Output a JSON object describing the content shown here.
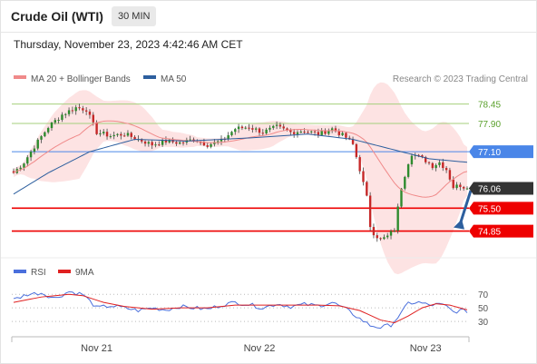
{
  "header": {
    "title": "Crude Oil (WTI)",
    "timeframe": "30 MIN"
  },
  "datetime": "Thursday, November 23, 2023 4:42:46 AM CET",
  "legend": {
    "items": [
      {
        "label": "MA 20 + Bollinger Bands",
        "color": "#f08a8a"
      },
      {
        "label": "MA 50",
        "color": "#2d5f9e"
      }
    ],
    "credit": "Research © 2023 Trading Central"
  },
  "chart_data": [
    {
      "type": "candlestick",
      "title": "",
      "price_range": [
        74.3,
        78.8
      ],
      "x_ticks": [
        {
          "label": "Nov 21",
          "index": 24
        },
        {
          "label": "Nov 22",
          "index": 71
        },
        {
          "label": "Nov 23",
          "index": 119
        }
      ],
      "levels": [
        {
          "value": 78.45,
          "label": "78.45",
          "kind": "resistance",
          "color": "#a4cf7c",
          "text_color": "#5aa02c"
        },
        {
          "value": 77.9,
          "label": "77.90",
          "kind": "resistance",
          "color": "#a4cf7c",
          "text_color": "#5aa02c"
        },
        {
          "value": 77.1,
          "label": "77.10",
          "kind": "pivot",
          "color": "#4a86e8"
        },
        {
          "value": 76.06,
          "label": "76.06",
          "kind": "last",
          "color": "#333333"
        },
        {
          "value": 75.5,
          "label": "75.50",
          "kind": "support",
          "color": "#ee0000"
        },
        {
          "value": 74.85,
          "label": "74.85",
          "kind": "support",
          "color": "#ee0000"
        }
      ],
      "colors": {
        "up": "#2e8b2e",
        "down": "#c62828",
        "band": "#fde0e0",
        "ma20": "#f08a8a",
        "ma50": "#2d5f9e",
        "arrow": "#2d5f9e"
      },
      "anchors": [
        [
          0,
          76.5
        ],
        [
          3,
          76.8
        ],
        [
          6,
          77.25
        ],
        [
          10,
          77.8
        ],
        [
          14,
          78.15
        ],
        [
          18,
          78.35
        ],
        [
          21,
          78.3
        ],
        [
          24,
          77.65
        ],
        [
          28,
          77.55
        ],
        [
          32,
          77.6
        ],
        [
          36,
          77.45
        ],
        [
          40,
          77.3
        ],
        [
          44,
          77.4
        ],
        [
          48,
          77.35
        ],
        [
          52,
          77.45
        ],
        [
          56,
          77.3
        ],
        [
          60,
          77.4
        ],
        [
          64,
          77.75
        ],
        [
          68,
          77.8
        ],
        [
          72,
          77.65
        ],
        [
          76,
          77.8
        ],
        [
          80,
          77.65
        ],
        [
          84,
          77.7
        ],
        [
          88,
          77.6
        ],
        [
          92,
          77.75
        ],
        [
          96,
          77.5
        ],
        [
          98,
          77.3
        ],
        [
          100,
          76.6
        ],
        [
          102,
          75.8
        ],
        [
          103,
          75.0
        ],
        [
          104,
          74.8
        ],
        [
          106,
          74.6
        ],
        [
          108,
          74.7
        ],
        [
          110,
          74.9
        ],
        [
          112,
          76.1
        ],
        [
          114,
          76.8
        ],
        [
          115,
          77.05
        ],
        [
          117,
          76.95
        ],
        [
          119,
          76.85
        ],
        [
          121,
          76.7
        ],
        [
          123,
          76.8
        ],
        [
          125,
          76.6
        ],
        [
          127,
          76.1
        ],
        [
          129,
          76.15
        ],
        [
          131,
          76.06
        ]
      ],
      "ma50_anchors": [
        [
          0,
          75.9
        ],
        [
          10,
          76.5
        ],
        [
          22,
          77.1
        ],
        [
          35,
          77.45
        ],
        [
          50,
          77.4
        ],
        [
          70,
          77.5
        ],
        [
          85,
          77.6
        ],
        [
          98,
          77.45
        ],
        [
          110,
          77.15
        ],
        [
          120,
          76.9
        ],
        [
          131,
          76.8
        ]
      ],
      "forecast_arrow": {
        "from_price": 76.0,
        "to_price": 74.85
      }
    },
    {
      "type": "line",
      "title": "",
      "series": [
        {
          "name": "RSI",
          "color": "#4a6fdc"
        },
        {
          "name": "9MA",
          "color": "#e02020"
        }
      ],
      "y_range": [
        10,
        85
      ],
      "levels": [
        {
          "value": 70,
          "label": "70"
        },
        {
          "value": 50,
          "label": "50"
        },
        {
          "value": 30,
          "label": "30"
        }
      ],
      "rsi_anchors": [
        [
          0,
          62
        ],
        [
          4,
          70
        ],
        [
          8,
          72
        ],
        [
          12,
          64
        ],
        [
          16,
          74
        ],
        [
          20,
          70
        ],
        [
          24,
          50
        ],
        [
          28,
          53
        ],
        [
          32,
          50
        ],
        [
          36,
          46
        ],
        [
          40,
          50
        ],
        [
          44,
          47
        ],
        [
          48,
          52
        ],
        [
          52,
          50
        ],
        [
          56,
          48
        ],
        [
          60,
          54
        ],
        [
          64,
          58
        ],
        [
          68,
          55
        ],
        [
          72,
          50
        ],
        [
          76,
          56
        ],
        [
          80,
          52
        ],
        [
          84,
          55
        ],
        [
          88,
          53
        ],
        [
          92,
          58
        ],
        [
          96,
          48
        ],
        [
          100,
          34
        ],
        [
          103,
          24
        ],
        [
          106,
          21
        ],
        [
          109,
          25
        ],
        [
          112,
          42
        ],
        [
          114,
          57
        ],
        [
          117,
          58
        ],
        [
          120,
          54
        ],
        [
          123,
          55
        ],
        [
          125,
          52
        ],
        [
          127,
          44
        ],
        [
          129,
          46
        ],
        [
          131,
          45
        ]
      ],
      "ma9_anchors": [
        [
          0,
          58
        ],
        [
          8,
          66
        ],
        [
          16,
          70
        ],
        [
          20,
          68
        ],
        [
          26,
          58
        ],
        [
          32,
          52
        ],
        [
          40,
          48
        ],
        [
          48,
          50
        ],
        [
          56,
          50
        ],
        [
          64,
          54
        ],
        [
          72,
          54
        ],
        [
          80,
          54
        ],
        [
          88,
          54
        ],
        [
          94,
          53
        ],
        [
          100,
          46
        ],
        [
          106,
          32
        ],
        [
          110,
          28
        ],
        [
          114,
          38
        ],
        [
          118,
          50
        ],
        [
          122,
          56
        ],
        [
          126,
          54
        ],
        [
          131,
          47
        ]
      ]
    }
  ]
}
